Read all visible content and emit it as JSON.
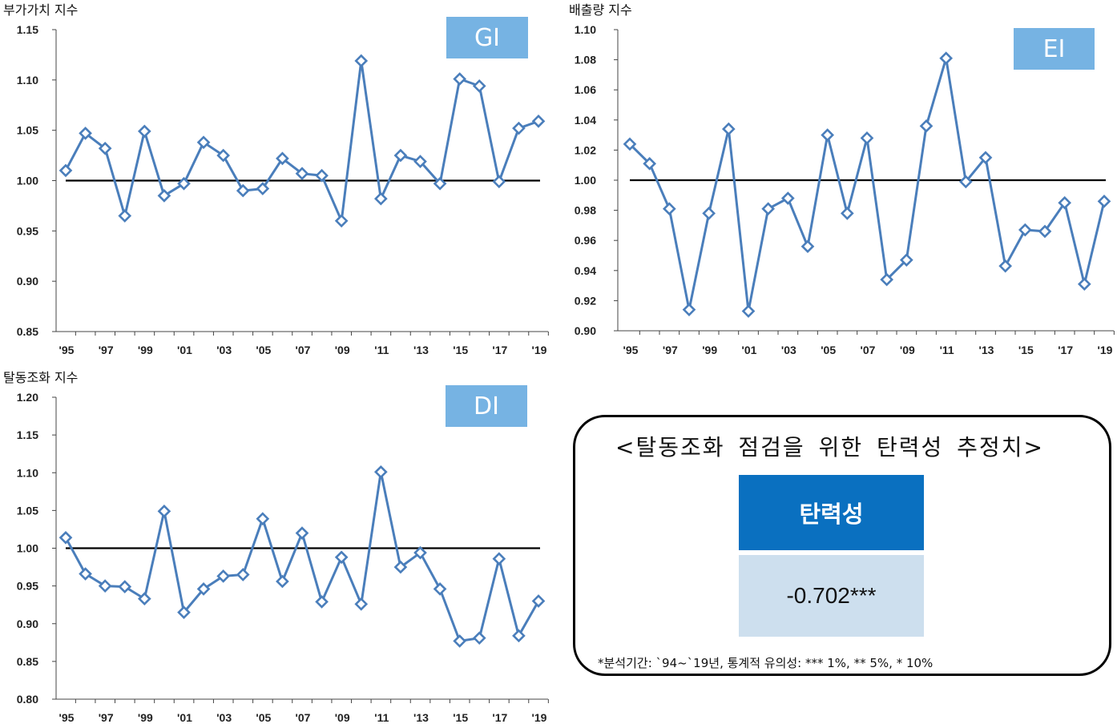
{
  "chart_data": [
    {
      "type": "line",
      "ylabel": "부가가치 지수",
      "badge": "GI",
      "x_ticks": [
        "'95",
        "'97",
        "'99",
        "'01",
        "'03",
        "'05",
        "'07",
        "'09",
        "'11",
        "'13",
        "'15",
        "'17",
        "'19"
      ],
      "y_ticks": [
        "1.15",
        "1.10",
        "1.05",
        "1.00",
        "0.95",
        "0.90",
        "0.85"
      ],
      "ylim": [
        0.85,
        1.15
      ],
      "reference_line": 1.0,
      "x": [
        1994,
        1995,
        1996,
        1997,
        1998,
        1999,
        2000,
        2001,
        2002,
        2003,
        2004,
        2005,
        2006,
        2007,
        2008,
        2009,
        2010,
        2011,
        2012,
        2013,
        2014,
        2015,
        2016,
        2017,
        2018
      ],
      "values": [
        1.01,
        1.047,
        1.032,
        0.965,
        1.049,
        0.985,
        0.997,
        1.038,
        1.025,
        0.99,
        0.992,
        1.022,
        1.007,
        1.005,
        0.96,
        1.119,
        0.982,
        1.025,
        1.019,
        0.997,
        1.101,
        1.094,
        0.999,
        1.052,
        1.059
      ],
      "color": "#4a7ebb"
    },
    {
      "type": "line",
      "ylabel": "배출량 지수",
      "badge": "EI",
      "x_ticks": [
        "'95",
        "'97",
        "'99",
        "'01",
        "'03",
        "'05",
        "'07",
        "'09",
        "'11",
        "'13",
        "'15",
        "'17",
        "'19"
      ],
      "y_ticks": [
        "1.10",
        "1.08",
        "1.06",
        "1.04",
        "1.02",
        "1.00",
        "0.98",
        "0.96",
        "0.94",
        "0.92",
        "0.90"
      ],
      "ylim": [
        0.9,
        1.1
      ],
      "reference_line": 1.0,
      "x": [
        1994,
        1995,
        1996,
        1997,
        1998,
        1999,
        2000,
        2001,
        2002,
        2003,
        2004,
        2005,
        2006,
        2007,
        2008,
        2009,
        2010,
        2011,
        2012,
        2013,
        2014,
        2015,
        2016,
        2017,
        2018
      ],
      "values": [
        1.024,
        1.011,
        0.981,
        0.914,
        0.978,
        1.034,
        0.913,
        0.981,
        0.988,
        0.956,
        1.03,
        0.978,
        1.028,
        0.934,
        0.947,
        1.036,
        1.081,
        0.999,
        1.015,
        0.943,
        0.967,
        0.966,
        0.985,
        0.931,
        0.986
      ],
      "color": "#4a7ebb"
    },
    {
      "type": "line",
      "ylabel": "탈동조화 지수",
      "badge": "DI",
      "x_ticks": [
        "'95",
        "'97",
        "'99",
        "'01",
        "'03",
        "'05",
        "'07",
        "'09",
        "'11",
        "'13",
        "'15",
        "'17",
        "'19"
      ],
      "y_ticks": [
        "1.20",
        "1.15",
        "1.10",
        "1.05",
        "1.00",
        "0.95",
        "0.90",
        "0.85",
        "0.80"
      ],
      "ylim": [
        0.8,
        1.2
      ],
      "reference_line": 1.0,
      "x": [
        1994,
        1995,
        1996,
        1997,
        1998,
        1999,
        2000,
        2001,
        2002,
        2003,
        2004,
        2005,
        2006,
        2007,
        2008,
        2009,
        2010,
        2011,
        2012,
        2013,
        2014,
        2015,
        2016,
        2017,
        2018
      ],
      "values": [
        1.014,
        0.966,
        0.95,
        0.949,
        0.933,
        1.049,
        0.915,
        0.946,
        0.963,
        0.965,
        1.039,
        0.956,
        1.02,
        0.929,
        0.988,
        0.926,
        1.101,
        0.975,
        0.994,
        0.946,
        0.877,
        0.881,
        0.986,
        0.884,
        0.93
      ],
      "color": "#4a7ebb"
    }
  ],
  "estimate": {
    "title": "<탈동조화 점검을 위한 탄력성 추정치>",
    "header": "탄력성",
    "value": "-0.702***",
    "note": "*분석기간: `94~`19년, 통계적 유의성: *** 1%, ** 5%, * 10%"
  }
}
